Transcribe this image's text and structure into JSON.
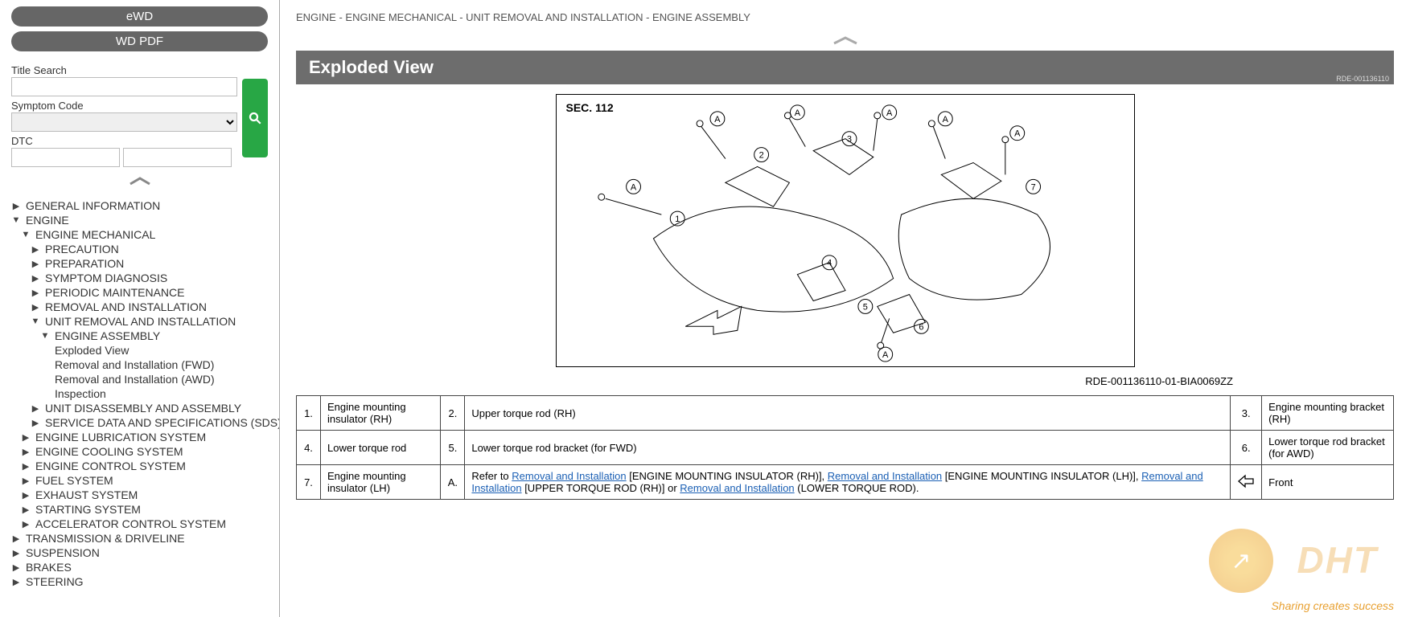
{
  "sidebar": {
    "btn_ewd": "eWD",
    "btn_wdpdf": "WD PDF",
    "label_title": "Title Search",
    "label_symptom": "Symptom Code",
    "label_dtc": "DTC",
    "tree": [
      {
        "lvl": 0,
        "exp": "right",
        "label": "GENERAL INFORMATION"
      },
      {
        "lvl": 0,
        "exp": "down",
        "label": "ENGINE"
      },
      {
        "lvl": 1,
        "exp": "down",
        "label": "ENGINE MECHANICAL"
      },
      {
        "lvl": 2,
        "exp": "right",
        "label": "PRECAUTION"
      },
      {
        "lvl": 2,
        "exp": "right",
        "label": "PREPARATION"
      },
      {
        "lvl": 2,
        "exp": "right",
        "label": "SYMPTOM DIAGNOSIS"
      },
      {
        "lvl": 2,
        "exp": "right",
        "label": "PERIODIC MAINTENANCE"
      },
      {
        "lvl": 2,
        "exp": "right",
        "label": "REMOVAL AND INSTALLATION"
      },
      {
        "lvl": 2,
        "exp": "down",
        "label": "UNIT REMOVAL AND INSTALLATION"
      },
      {
        "lvl": 3,
        "exp": "down",
        "label": "ENGINE ASSEMBLY"
      },
      {
        "lvl": 4,
        "exp": "none",
        "label": "Exploded View"
      },
      {
        "lvl": 4,
        "exp": "none",
        "label": "Removal and Installation (FWD)"
      },
      {
        "lvl": 4,
        "exp": "none",
        "label": "Removal and Installation (AWD)"
      },
      {
        "lvl": 4,
        "exp": "none",
        "label": "Inspection"
      },
      {
        "lvl": 2,
        "exp": "right",
        "label": "UNIT DISASSEMBLY AND ASSEMBLY"
      },
      {
        "lvl": 2,
        "exp": "right",
        "label": "SERVICE DATA AND SPECIFICATIONS (SDS)"
      },
      {
        "lvl": 1,
        "exp": "right",
        "label": "ENGINE LUBRICATION SYSTEM"
      },
      {
        "lvl": 1,
        "exp": "right",
        "label": "ENGINE COOLING SYSTEM"
      },
      {
        "lvl": 1,
        "exp": "right",
        "label": "ENGINE CONTROL SYSTEM"
      },
      {
        "lvl": 1,
        "exp": "right",
        "label": "FUEL SYSTEM"
      },
      {
        "lvl": 1,
        "exp": "right",
        "label": "EXHAUST SYSTEM"
      },
      {
        "lvl": 1,
        "exp": "right",
        "label": "STARTING SYSTEM"
      },
      {
        "lvl": 1,
        "exp": "right",
        "label": "ACCELERATOR CONTROL SYSTEM"
      },
      {
        "lvl": 0,
        "exp": "right",
        "label": "TRANSMISSION & DRIVELINE"
      },
      {
        "lvl": 0,
        "exp": "right",
        "label": "SUSPENSION"
      },
      {
        "lvl": 0,
        "exp": "right",
        "label": "BRAKES"
      },
      {
        "lvl": 0,
        "exp": "right",
        "label": "STEERING"
      }
    ]
  },
  "main": {
    "breadcrumb": "ENGINE - ENGINE MECHANICAL - UNIT REMOVAL AND INSTALLATION - ENGINE ASSEMBLY",
    "title": "Exploded View",
    "doc_id_small": "RDE-001136110",
    "diagram_sec": "SEC. 112",
    "diagram_caption": "RDE-001136110-01-BIA0069ZZ",
    "parts": {
      "r1": {
        "n1": "1.",
        "t1": "Engine mounting insulator (RH)",
        "n2": "2.",
        "t2": "Upper torque rod (RH)",
        "n3": "3.",
        "t3": "Engine mounting bracket (RH)"
      },
      "r2": {
        "n1": "4.",
        "t1": "Lower torque rod",
        "n2": "5.",
        "t2": "Lower torque rod bracket (for FWD)",
        "n3": "6.",
        "t3": "Lower torque rod bracket (for AWD)"
      },
      "r3": {
        "n1": "7.",
        "t1": "Engine mounting insulator (LH)",
        "n2": "A.",
        "t2_pre": "Refer to ",
        "l1": "Removal and Installation",
        "t2_a": " [ENGINE MOUNTING INSULATOR (RH)], ",
        "l2": "Removal and Installation",
        "t2_b": " [ENGINE MOUNTING INSULATOR (LH)], ",
        "l3": "Removal and Installation",
        "t2_c": " [UPPER TORQUE ROD (RH)] or ",
        "l4": "Removal and Installation",
        "t2_d": " (LOWER TORQUE ROD).",
        "t3": "Front"
      }
    }
  },
  "watermark": {
    "tag": "Sharing creates success",
    "brand": "DHT"
  }
}
